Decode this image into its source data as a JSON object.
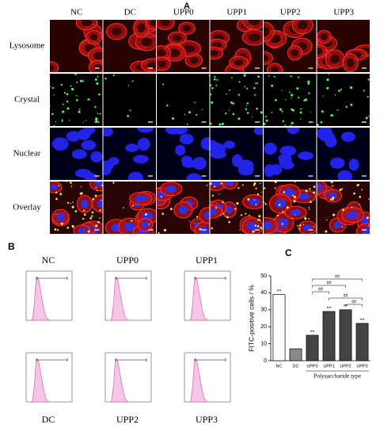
{
  "panel_a": {
    "label": "A",
    "columns": [
      "NC",
      "DC",
      "UPP0",
      "UPP1",
      "UPP2",
      "UPP3"
    ],
    "rows": [
      "Lysosome",
      "Crystal",
      "Nuclear",
      "Overlay"
    ]
  },
  "panel_b": {
    "label": "B",
    "samples": [
      "NC",
      "UPP0",
      "UPP1",
      "DC",
      "UPP2",
      "UPP3"
    ]
  },
  "chart_data": {
    "type": "bar",
    "panel_label": "C",
    "y_label": "FITC-positive cells / %",
    "x_label": "Polysaccharide type",
    "categories": [
      "NC",
      "DC",
      "UPP0",
      "UPP1",
      "UPP2",
      "UPP3"
    ],
    "values": [
      39,
      7,
      15,
      29,
      30,
      22
    ],
    "colors": [
      "#ffffff",
      "#8a8a8a",
      "#444444",
      "#444444",
      "#444444",
      "#444444"
    ],
    "significance": [
      "**",
      null,
      "**",
      "**",
      "**",
      "**"
    ],
    "comparisons": [
      {
        "from": "UPP0",
        "to": "UPP3",
        "label": "##"
      },
      {
        "from": "UPP0",
        "to": "UPP2",
        "label": "##"
      },
      {
        "from": "UPP0",
        "to": "UPP1",
        "label": "##"
      },
      {
        "from": "UPP1",
        "to": "UPP3",
        "label": "##"
      },
      {
        "from": "UPP2",
        "to": "UPP3",
        "label": "##"
      }
    ],
    "ylim": [
      0,
      50
    ],
    "yticks": [
      0,
      10,
      20,
      30,
      40,
      50
    ]
  }
}
